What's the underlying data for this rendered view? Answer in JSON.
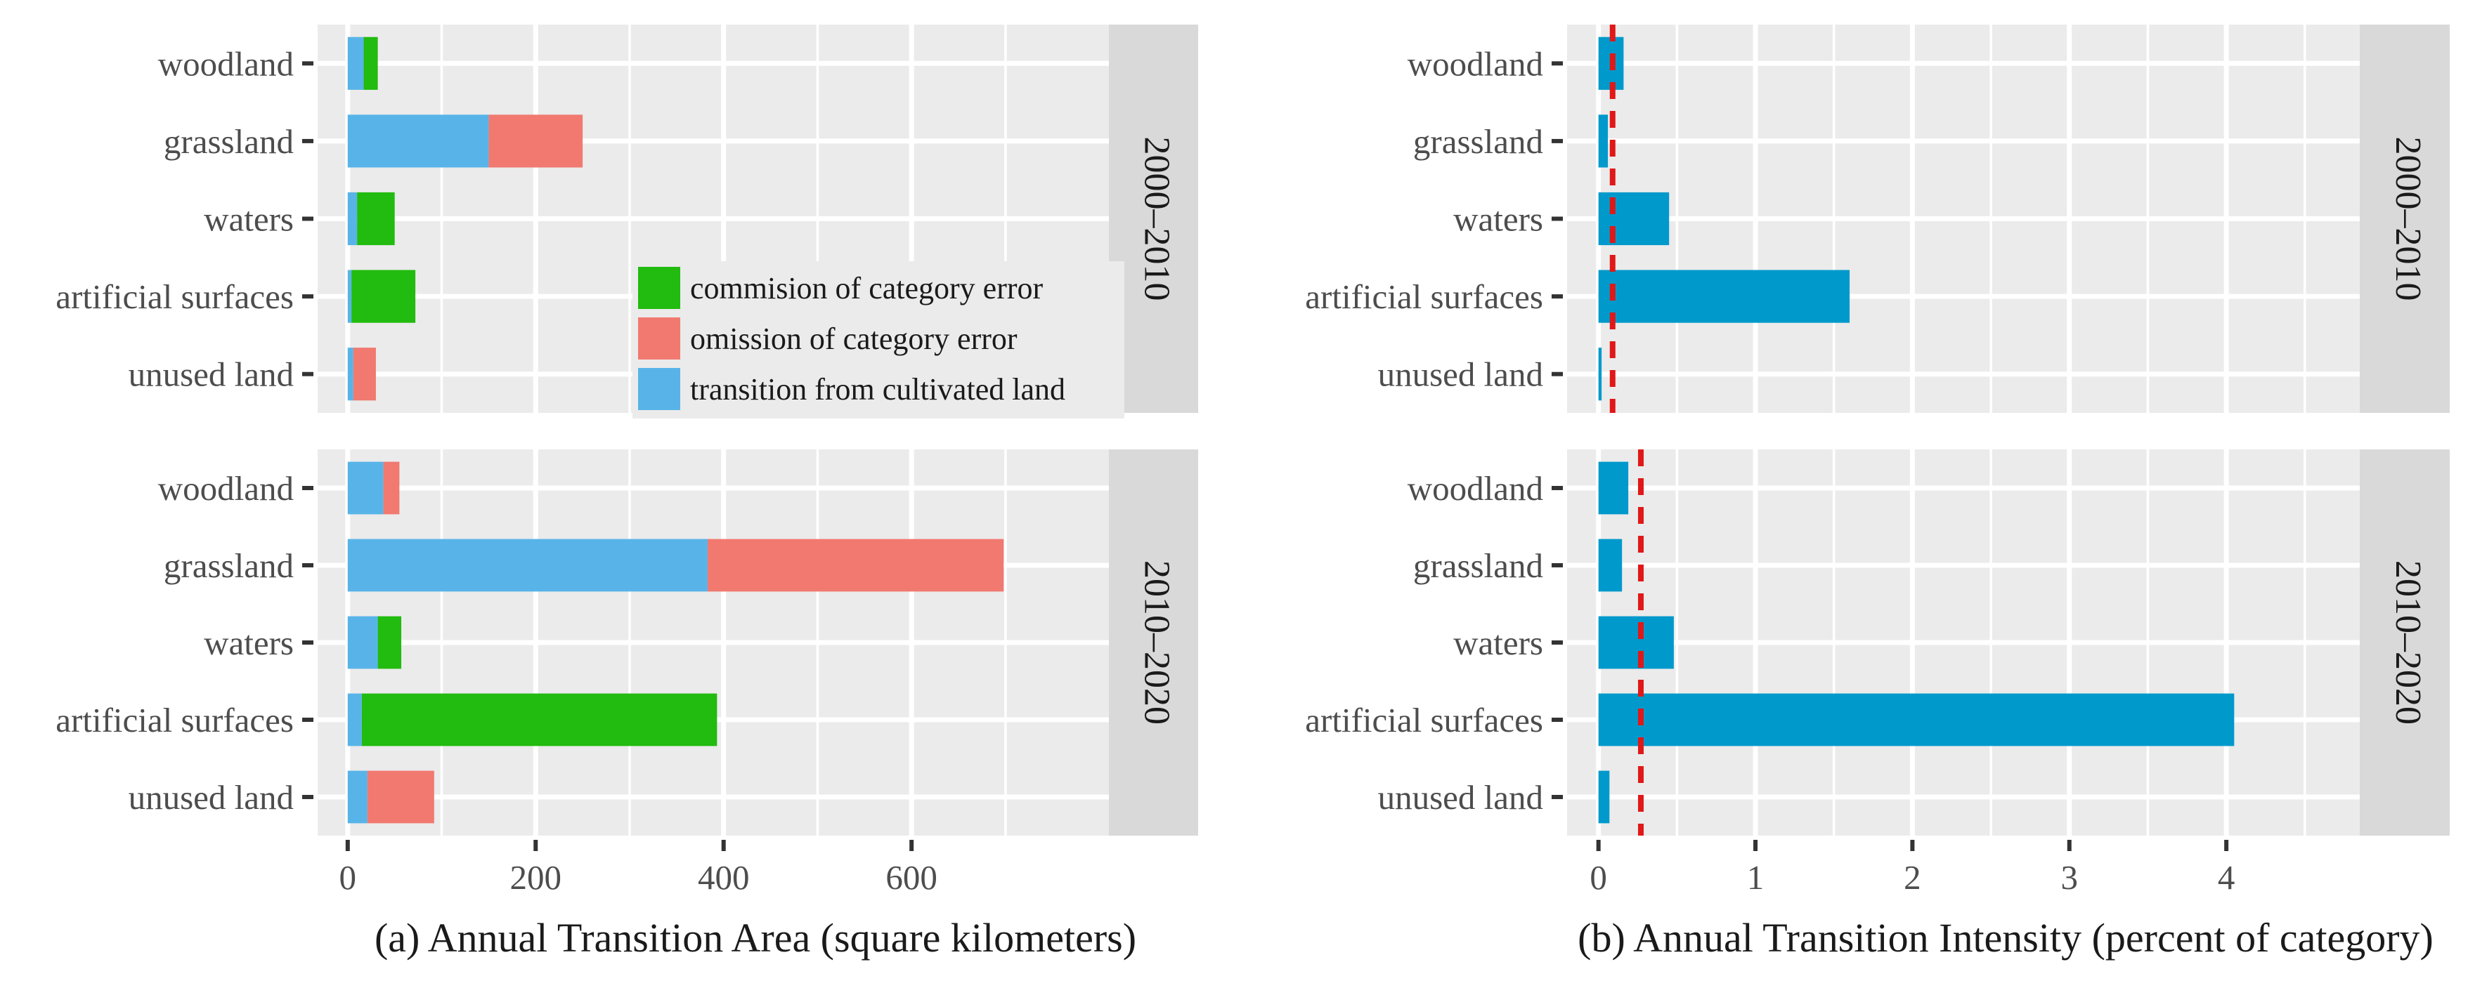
{
  "chart_data": [
    {
      "type": "bar",
      "orientation": "horizontal",
      "stacked": true,
      "xlabel": "(a) Annual Transition Area (square kilometers)",
      "ylabel": "",
      "xlim": [
        -32,
        810
      ],
      "xticks": [
        0,
        200,
        400,
        600
      ],
      "categories": [
        "woodland",
        "grassland",
        "waters",
        "artificial surfaces",
        "unused land"
      ],
      "legend": {
        "position": "inside-bottom-right",
        "entries": [
          {
            "label": "commision of category error",
            "color": "#22BB0F"
          },
          {
            "label": "omission of category error",
            "color": "#F17970"
          },
          {
            "label": "transition from cultivated land",
            "color": "#58B4E8"
          }
        ]
      },
      "series_colors": {
        "transition": "#58B4E8",
        "commission": "#22BB0F",
        "omission": "#F17970"
      },
      "panels": [
        {
          "period": "2000–2010",
          "bars": [
            {
              "category": "woodland",
              "transition": 17,
              "error_type": "commission",
              "error": 15
            },
            {
              "category": "grassland",
              "transition": 150,
              "error_type": "omission",
              "error": 100
            },
            {
              "category": "waters",
              "transition": 10,
              "error_type": "commission",
              "error": 40
            },
            {
              "category": "artificial surfaces",
              "transition": 4,
              "error_type": "commission",
              "error": 68
            },
            {
              "category": "unused land",
              "transition": 6,
              "error_type": "omission",
              "error": 24
            }
          ]
        },
        {
          "period": "2010–2020",
          "bars": [
            {
              "category": "woodland",
              "transition": 38,
              "error_type": "omission",
              "error": 17
            },
            {
              "category": "grassland",
              "transition": 383,
              "error_type": "omission",
              "error": 315
            },
            {
              "category": "waters",
              "transition": 32,
              "error_type": "commission",
              "error": 25
            },
            {
              "category": "artificial surfaces",
              "transition": 15,
              "error_type": "commission",
              "error": 378
            },
            {
              "category": "unused land",
              "transition": 21,
              "error_type": "omission",
              "error": 71
            }
          ]
        }
      ]
    },
    {
      "type": "bar",
      "orientation": "horizontal",
      "xlabel": "(b) Annual Transition Intensity (percent of category)",
      "ylabel": "",
      "xlim": [
        -0.2,
        4.85
      ],
      "xticks": [
        0,
        1,
        2,
        3,
        4
      ],
      "categories": [
        "woodland",
        "grassland",
        "waters",
        "artificial surfaces",
        "unused land"
      ],
      "bar_color": "#0099CC",
      "reference_line_color": "#E01818",
      "panels": [
        {
          "period": "2000–2010",
          "uniform_intensity": 0.09,
          "values": [
            {
              "category": "woodland",
              "value": 0.16
            },
            {
              "category": "grassland",
              "value": 0.06
            },
            {
              "category": "waters",
              "value": 0.45
            },
            {
              "category": "artificial surfaces",
              "value": 1.6
            },
            {
              "category": "unused land",
              "value": 0.02
            }
          ]
        },
        {
          "period": "2010–2020",
          "uniform_intensity": 0.27,
          "values": [
            {
              "category": "woodland",
              "value": 0.19
            },
            {
              "category": "grassland",
              "value": 0.15
            },
            {
              "category": "waters",
              "value": 0.48
            },
            {
              "category": "artificial surfaces",
              "value": 4.05
            },
            {
              "category": "unused land",
              "value": 0.07
            }
          ]
        }
      ]
    }
  ]
}
